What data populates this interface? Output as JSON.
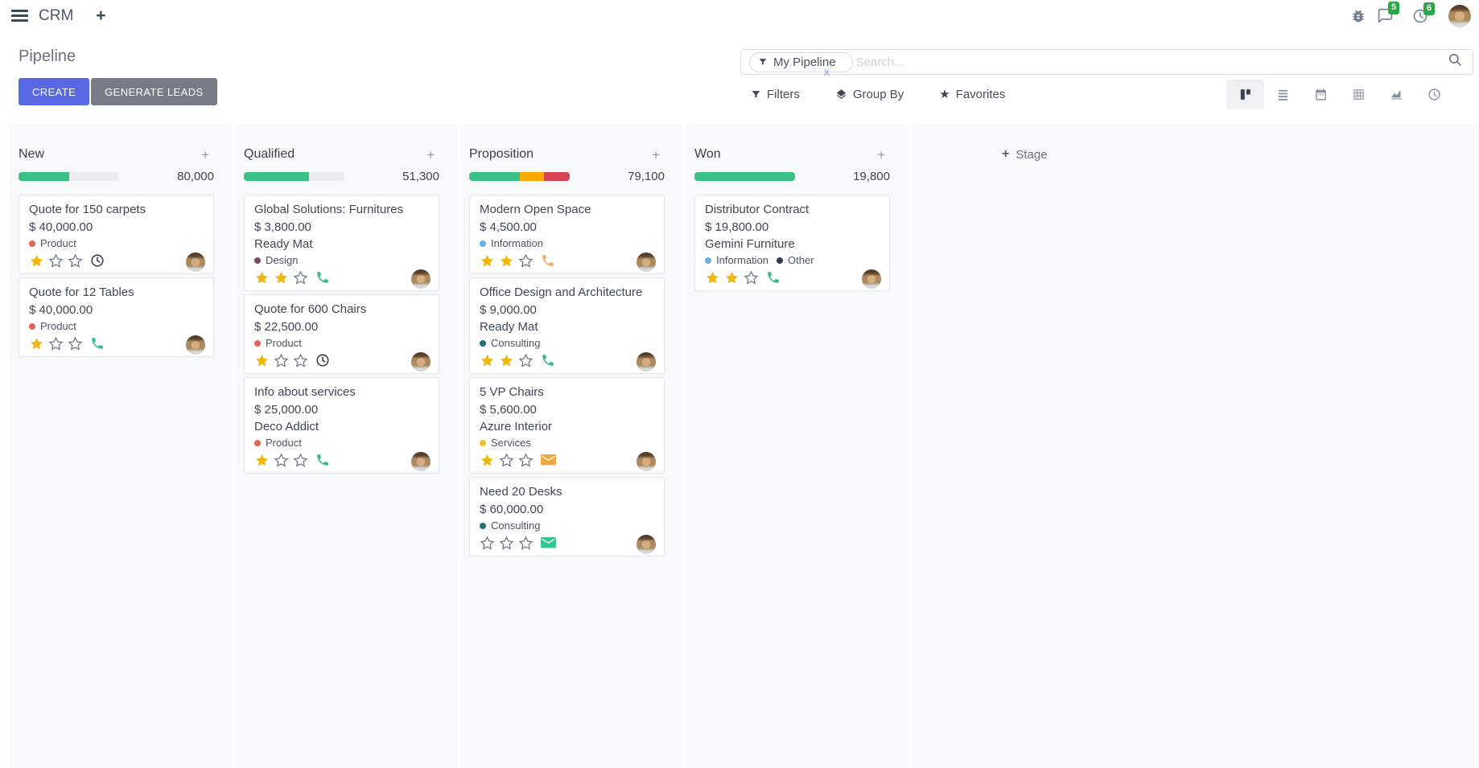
{
  "nav": {
    "app": "CRM",
    "chat_badge": "5",
    "clock_badge": "6"
  },
  "header": {
    "title": "Pipeline",
    "create_label": "CREATE",
    "generate_label": "GENERATE LEADS"
  },
  "search": {
    "facet": "My Pipeline",
    "placeholder": "Search...",
    "remove": "x"
  },
  "toolbar": {
    "filters": "Filters",
    "group_by": "Group By",
    "favorites": "Favorites"
  },
  "stage_add_label": "Stage",
  "colors": {
    "green": "#39c184",
    "orange": "#fbab00",
    "red": "#d94353",
    "track": "#e9ebee"
  },
  "columns": [
    {
      "name": "New",
      "count": "80,000",
      "progress": [
        {
          "color": "#39c184",
          "pct": 50
        }
      ],
      "cards": [
        {
          "title": "Quote for 150 carpets",
          "amount": "$ 40,000.00",
          "company": null,
          "tags": [
            {
              "color": "#e4635a",
              "label": "Product"
            }
          ],
          "stars": 1,
          "activity": {
            "icon": "clock",
            "color": "#3f4652"
          }
        },
        {
          "title": "Quote for 12 Tables",
          "amount": "$ 40,000.00",
          "company": null,
          "tags": [
            {
              "color": "#e4635a",
              "label": "Product"
            }
          ],
          "stars": 1,
          "activity": {
            "icon": "phone",
            "color": "#2ebd85"
          }
        }
      ]
    },
    {
      "name": "Qualified",
      "count": "51,300",
      "progress": [
        {
          "color": "#39c184",
          "pct": 65
        }
      ],
      "cards": [
        {
          "title": "Global Solutions: Furnitures",
          "amount": "$ 3,800.00",
          "company": "Ready Mat",
          "tags": [
            {
              "color": "#7a4a68",
              "label": "Design"
            }
          ],
          "stars": 2,
          "activity": {
            "icon": "phone",
            "color": "#2ebd85"
          }
        },
        {
          "title": "Quote for 600 Chairs",
          "amount": "$ 22,500.00",
          "company": null,
          "tags": [
            {
              "color": "#e4635a",
              "label": "Product"
            }
          ],
          "stars": 1,
          "activity": {
            "icon": "clock",
            "color": "#3f4652"
          }
        },
        {
          "title": "Info about services",
          "amount": "$ 25,000.00",
          "company": "Deco Addict",
          "tags": [
            {
              "color": "#e4635a",
              "label": "Product"
            }
          ],
          "stars": 1,
          "activity": {
            "icon": "phone",
            "color": "#2ebd85"
          }
        }
      ]
    },
    {
      "name": "Proposition",
      "count": "79,100",
      "progress": [
        {
          "color": "#39c184",
          "pct": 50
        },
        {
          "color": "#fbab00",
          "pct": 24
        },
        {
          "color": "#d94353",
          "pct": 26
        }
      ],
      "cards": [
        {
          "title": "Modern Open Space",
          "amount": "$ 4,500.00",
          "company": null,
          "tags": [
            {
              "color": "#67b1e4",
              "label": "Information"
            }
          ],
          "stars": 2,
          "activity": {
            "icon": "phone",
            "color": "#edae59"
          }
        },
        {
          "title": "Office Design and Architecture",
          "amount": "$ 9,000.00",
          "company": "Ready Mat",
          "tags": [
            {
              "color": "#23707d",
              "label": "Consulting"
            }
          ],
          "stars": 2,
          "activity": {
            "icon": "phone",
            "color": "#2ebd85"
          }
        },
        {
          "title": "5 VP Chairs",
          "amount": "$ 5,600.00",
          "company": "Azure Interior",
          "tags": [
            {
              "color": "#eebf29",
              "label": "Services"
            }
          ],
          "stars": 1,
          "activity": {
            "icon": "mail",
            "color": "#efa742"
          }
        },
        {
          "title": "Need 20 Desks",
          "amount": "$ 60,000.00",
          "company": null,
          "tags": [
            {
              "color": "#23707d",
              "label": "Consulting"
            }
          ],
          "stars": 0,
          "activity": {
            "icon": "mail",
            "color": "#35c593"
          }
        }
      ]
    },
    {
      "name": "Won",
      "count": "19,800",
      "progress": [
        {
          "color": "#39c184",
          "pct": 100
        }
      ],
      "cards": [
        {
          "title": "Distributor Contract",
          "amount": "$ 19,800.00",
          "company": "Gemini Furniture",
          "tags": [
            {
              "color": "#67b1e4",
              "label": "Information"
            },
            {
              "color": "#2d3e50",
              "label": "Other"
            }
          ],
          "stars": 2,
          "activity": {
            "icon": "phone",
            "color": "#2ebd85"
          }
        }
      ]
    }
  ]
}
